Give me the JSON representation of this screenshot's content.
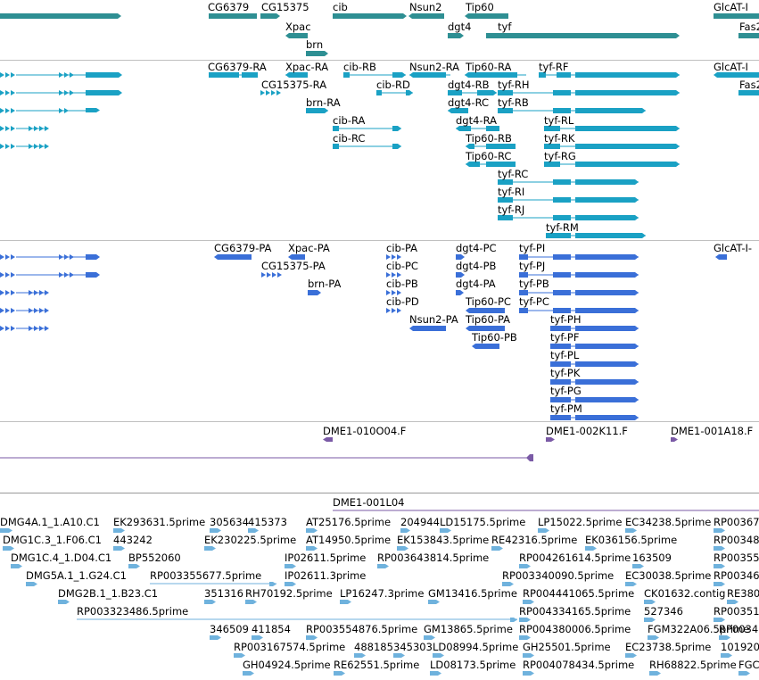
{
  "colors": {
    "gene": "#2e8f93",
    "transcript": "#1aa1c4",
    "protein": "#3a6fd8",
    "clone": "#7a5aa6",
    "est": "#6fb2dd",
    "separator": "#c0c0c0"
  },
  "tracks": {
    "genes": {
      "labels": [
        "CG6379",
        "CG15375",
        "cib",
        "Nsun2",
        "Tip60",
        "GlcAT-I",
        "Xpac",
        "dgt4",
        "tyf",
        "Fas2",
        "brn"
      ]
    },
    "transcripts": {
      "labels": [
        "CG6379-RA",
        "Xpac-RA",
        "cib-RB",
        "Nsun2-RA",
        "Tip60-RA",
        "tyf-RF",
        "GlcAT-I",
        "CG15375-RA",
        "cib-RD",
        "dgt4-RB",
        "tyf-RH",
        "Fas2",
        "brn-RA",
        "dgt4-RC",
        "tyf-RB",
        "cib-RA",
        "dgt4-RA",
        "tyf-RL",
        "cib-RC",
        "Tip60-RB",
        "tyf-RK",
        "Tip60-RC",
        "tyf-RG",
        "tyf-RC",
        "tyf-RI",
        "tyf-RJ",
        "tyf-RM"
      ]
    },
    "proteins": {
      "labels": [
        "CG6379-PA",
        "Xpac-PA",
        "cib-PA",
        "dgt4-PC",
        "tyf-PI",
        "GlcAT-I-",
        "CG15375-PA",
        "cib-PC",
        "dgt4-PB",
        "tyf-PJ",
        "brn-PA",
        "cib-PB",
        "dgt4-PA",
        "tyf-PB",
        "cib-PD",
        "Tip60-PC",
        "tyf-PC",
        "Nsun2-PA",
        "Tip60-PA",
        "tyf-PH",
        "Tip60-PB",
        "tyf-PF",
        "tyf-PL",
        "tyf-PK",
        "tyf-PG",
        "tyf-PM"
      ]
    },
    "clones": {
      "labels": [
        "DME1-010O04.F",
        "DME1-002K11.F",
        "DME1-001A18.F",
        "DME1-001L04"
      ]
    },
    "ests": {
      "labels": [
        "DMG4A.1_1.A10.C1",
        "EK293631.5prime",
        "305634",
        "415373",
        "AT25176.5prime",
        "204944",
        "LD15175.5prime",
        "LP15022.5prime",
        "EC34238.5prime",
        "RP00367",
        "DMG1C.3_1.F06.C1",
        "443242",
        "EK230225.5prime",
        "AT14950.5prime",
        "EK153843.5prime",
        "RE42316.5prime",
        "EK036156.5prime",
        "RP00348",
        "DMG1C.4_1.D04.C1",
        "BP552060",
        "IP02611.5prime",
        "RP003643814.5prime",
        "RP004261614.5prime",
        "163509",
        "RP00355",
        "DMG5A.1_1.G24.C1",
        "RP003355677.5prime",
        "IP02611.3prime",
        "RP003340090.5prime",
        "EC30038.5prime",
        "RP00346",
        "DMG2B.1_1.B23.C1",
        "351316",
        "RH70192.5prime",
        "LP16247.3prime",
        "GM13416.5prime",
        "RP004441065.5prime",
        "CK01632.contig",
        "RE380",
        "RP003323486.5prime",
        "RP004334165.5prime",
        "527346",
        "RP00351",
        "346509",
        "411854",
        "RP003554876.5prime",
        "GM13865.5prime",
        "RP004380006.5prime",
        "FGM322A06.5prime",
        "RP00346",
        "RP003167574.5prime",
        "488185",
        "345303",
        "LD08994.5prime",
        "GH25501.5prime",
        "EC23738.5prime",
        "101920",
        "GH04924.5prime",
        "RE62551.5prime",
        "LD08173.5prime",
        "RP004078434.5prime",
        "RH68822.5prime",
        "FGC"
      ]
    }
  }
}
